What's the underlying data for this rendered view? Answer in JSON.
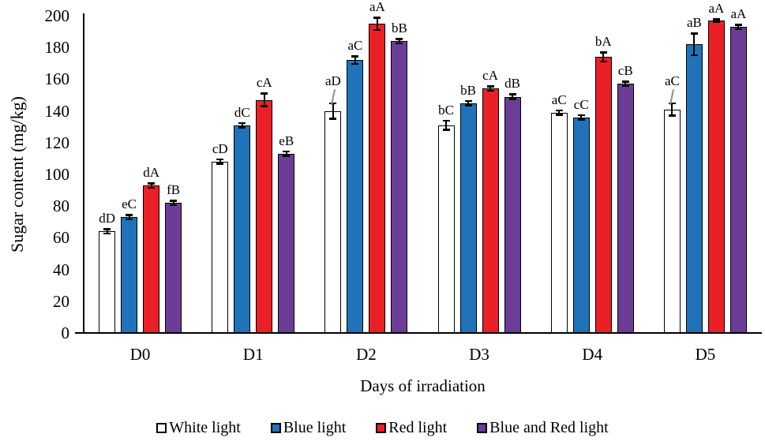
{
  "chart_data": {
    "type": "bar",
    "title": "",
    "ylabel": "Sugar content (mg/kg)",
    "xlabel": "Days of irradiation",
    "categories": [
      "D0",
      "D1",
      "D2",
      "D3",
      "D4",
      "D5"
    ],
    "ylim": [
      0,
      200
    ],
    "ytick_step": 20,
    "grid": false,
    "legend_position": "bottom",
    "series": [
      {
        "name": "White light",
        "color": "#ffffff",
        "values": [
          64,
          108,
          140,
          131,
          139,
          141
        ],
        "errors": [
          1.5,
          1.5,
          5,
          3,
          1.5,
          4
        ],
        "labels": [
          "dD",
          "cD",
          "aD",
          "bC",
          "aC",
          "aC"
        ],
        "leaders": [
          false,
          false,
          true,
          false,
          false,
          true
        ]
      },
      {
        "name": "Blue light",
        "color": "#2173B9",
        "values": [
          73,
          131,
          172,
          145,
          136,
          182
        ],
        "errors": [
          1.5,
          1.5,
          2.5,
          1.5,
          1.5,
          7
        ],
        "labels": [
          "eC",
          "dC",
          "aC",
          "bB",
          "cC",
          "aB"
        ],
        "leaders": [
          false,
          false,
          false,
          false,
          false,
          false
        ]
      },
      {
        "name": "Red light",
        "color": "#EB2027",
        "values": [
          93,
          147,
          195,
          154,
          174,
          197
        ],
        "errors": [
          1.5,
          4,
          4,
          1.5,
          3,
          1
        ],
        "labels": [
          "dA",
          "cA",
          "aA",
          "cA",
          "bA",
          "aA"
        ],
        "leaders": [
          false,
          false,
          false,
          false,
          false,
          false
        ]
      },
      {
        "name": "Blue and Red light",
        "color": "#6C3D96",
        "values": [
          82,
          113,
          184,
          149,
          157,
          193
        ],
        "errors": [
          1.5,
          1.5,
          1.5,
          1.5,
          1.5,
          1.5
        ],
        "labels": [
          "fB",
          "eB",
          "bB",
          "dB",
          "cB",
          "aA"
        ],
        "leaders": [
          false,
          false,
          false,
          false,
          false,
          false
        ]
      }
    ],
    "legend": [
      "White light",
      "Blue light",
      "Red light",
      "Blue and Red light"
    ]
  }
}
